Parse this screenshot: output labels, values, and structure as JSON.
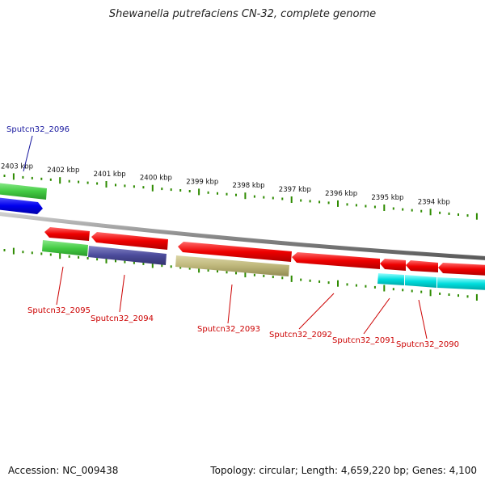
{
  "title": "Shewanella putrefaciens CN-32, complete genome",
  "footer": {
    "accession": "Accession: NC_009438",
    "summary": "Topology: circular; Length: 4,659,220 bp; Genes: 4,100"
  },
  "colors": {
    "backbone": "#8a8a8a",
    "tick": "#2e8b00",
    "minus_strand": "#ee0000",
    "plus_strand_label": "#1a1aa0",
    "minus_strand_label": "#cc0000",
    "green": "#44cc44",
    "blue": "#0000ee",
    "navy": "#4b4b9a",
    "olive": "#bdb67a",
    "cyan": "#00dddd"
  },
  "ticks": [
    "2403 kbp",
    "2402 kbp",
    "2401 kbp",
    "2400 kbp",
    "2399 kbp",
    "2398 kbp",
    "2397 kbp",
    "2396 kbp",
    "2395 kbp",
    "2394 kbp"
  ],
  "gene_labels": [
    {
      "text": "Sputcn32_2096",
      "strand": "plus"
    },
    {
      "text": "Sputcn32_2095",
      "strand": "minus"
    },
    {
      "text": "Sputcn32_2094",
      "strand": "minus"
    },
    {
      "text": "Sputcn32_2093",
      "strand": "minus"
    },
    {
      "text": "Sputcn32_2092",
      "strand": "minus"
    },
    {
      "text": "Sputcn32_2091",
      "strand": "minus"
    },
    {
      "text": "Sputcn32_2090",
      "strand": "minus"
    }
  ]
}
